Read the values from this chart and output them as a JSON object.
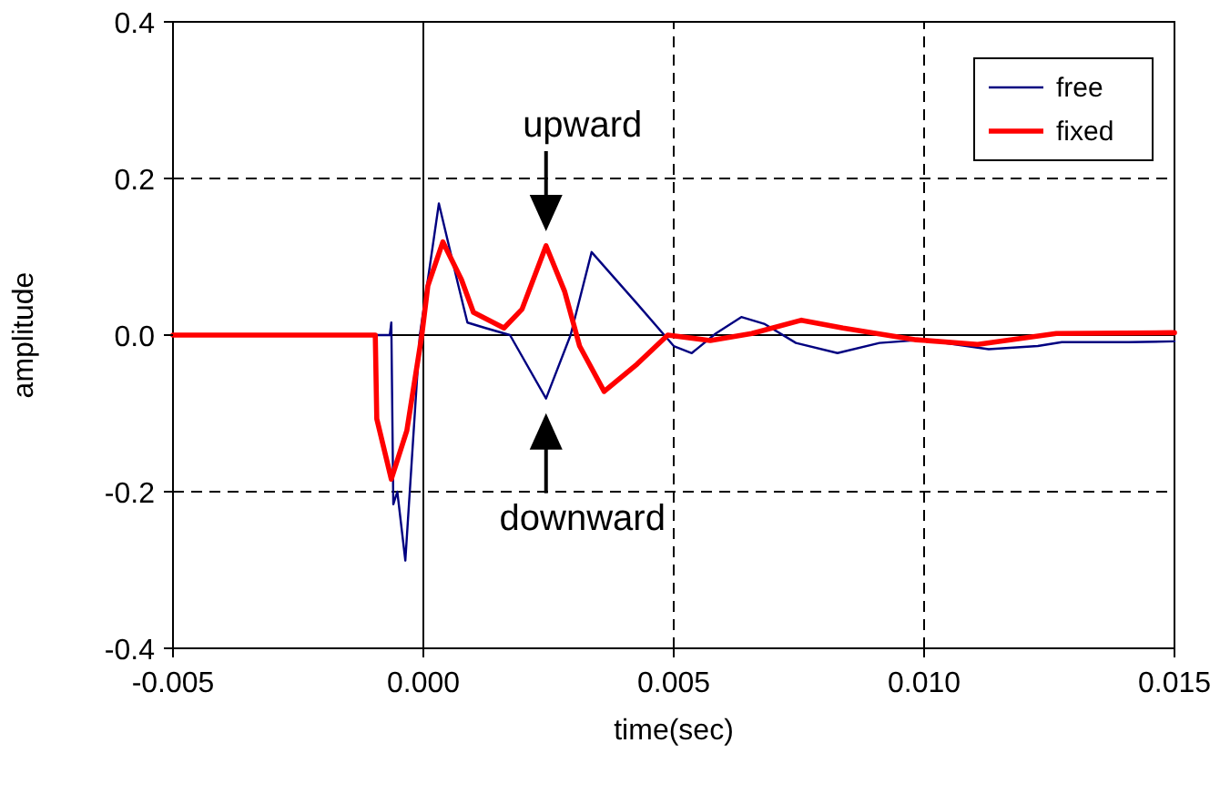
{
  "chart_data": {
    "type": "line",
    "xlabel": "time(sec)",
    "ylabel": "amplitude",
    "xlim": [
      -0.005,
      0.015
    ],
    "xticks": [
      {
        "value": -0.005,
        "label": "-0.005"
      },
      {
        "value": 0,
        "label": "0.000"
      },
      {
        "value": 0.005,
        "label": "0.005"
      },
      {
        "value": 0.01,
        "label": "0.010"
      },
      {
        "value": 0.015,
        "label": "0.015"
      }
    ],
    "ylim": [
      -0.4,
      0.4
    ],
    "yticks": [
      {
        "value": -0.4,
        "label": "-0.4"
      },
      {
        "value": -0.2,
        "label": "-0.2"
      },
      {
        "value": 0,
        "label": "0.0"
      },
      {
        "value": 0.2,
        "label": "0.2"
      },
      {
        "value": 0.4,
        "label": "0.4"
      }
    ],
    "grid": true,
    "legend": "top right",
    "line_style": "solid",
    "marker": "none",
    "series": [
      {
        "name": "free",
        "color": "#000080",
        "x": [
          -0.005,
          -0.00067,
          -0.00064,
          -0.0006,
          -0.00052,
          -0.00036,
          -7e-05,
          0.00031,
          0.0007,
          0.00088,
          0.00124,
          0.00173,
          0.00245,
          0.00294,
          0.00336,
          0.00427,
          0.005,
          0.00536,
          0.00584,
          0.00635,
          0.00682,
          0.00744,
          0.00827,
          0.00911,
          0.00998,
          0.01129,
          0.01227,
          0.01275,
          0.01409,
          0.015
        ],
        "values": [
          0,
          0,
          0.016,
          -0.216,
          -0.2,
          -0.288,
          0,
          0.168,
          0.063,
          0.016,
          0.009,
          0,
          -0.081,
          0,
          0.106,
          0.04,
          -0.014,
          -0.023,
          0.002,
          0.023,
          0.014,
          -0.01,
          -0.023,
          -0.01,
          -0.006,
          -0.018,
          -0.014,
          -0.009,
          -0.009,
          -0.008
        ]
      },
      {
        "name": "fixed",
        "color": "#ff0000",
        "x": [
          -0.005,
          -0.00096,
          -0.00093,
          -0.00064,
          -0.00033,
          -3e-05,
          9e-05,
          0.00039,
          0.00076,
          0.001,
          0.00161,
          0.00197,
          0.00245,
          0.00282,
          0.00312,
          0.00361,
          0.00427,
          0.00488,
          0.00573,
          0.00656,
          0.00755,
          0.00838,
          0.00984,
          0.01107,
          0.01264,
          0.015
        ],
        "values": [
          0,
          0,
          -0.107,
          -0.184,
          -0.122,
          0,
          0.063,
          0.119,
          0.071,
          0.029,
          0.009,
          0.033,
          0.114,
          0.056,
          -0.014,
          -0.072,
          -0.037,
          0,
          -0.007,
          0.002,
          0.019,
          0.009,
          -0.006,
          -0.012,
          0.002,
          0.003
        ]
      }
    ],
    "annotations": [
      {
        "text": "upward",
        "x": 0.00245,
        "y": 0.114
      },
      {
        "text": "downward",
        "x": 0.00245,
        "y": -0.081
      }
    ]
  }
}
